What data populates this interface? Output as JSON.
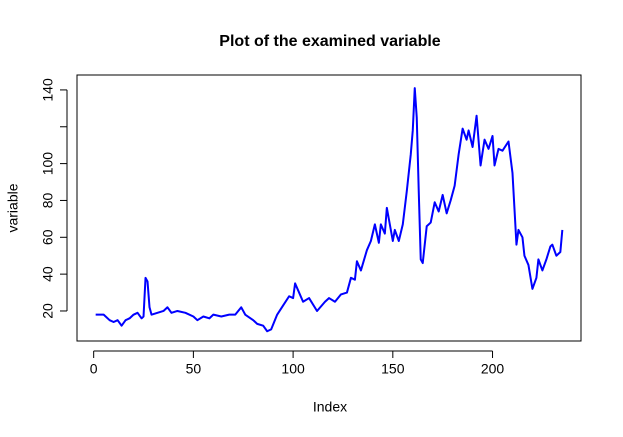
{
  "chart_data": {
    "type": "line",
    "title": "Plot of the examined variable",
    "x_label": "Index",
    "y_label": "variable",
    "x": [
      1,
      5,
      8,
      10,
      12,
      14,
      16,
      18,
      20,
      22,
      24,
      25,
      26,
      27,
      28,
      29,
      32,
      35,
      37,
      39,
      42,
      46,
      50,
      52,
      55,
      58,
      60,
      64,
      68,
      71,
      74,
      76,
      80,
      82,
      85,
      87,
      89,
      92,
      95,
      98,
      100,
      101,
      103,
      105,
      108,
      112,
      116,
      118,
      121,
      124,
      127,
      129,
      131,
      132,
      134,
      137,
      139,
      141,
      143,
      144,
      146,
      147,
      148,
      150,
      151,
      153,
      155,
      157,
      159,
      160,
      161,
      162,
      163,
      164,
      165,
      167,
      169,
      171,
      173,
      175,
      177,
      179,
      181,
      183,
      185,
      187,
      188,
      190,
      192,
      194,
      196,
      198,
      200,
      201,
      203,
      205,
      208,
      210,
      212,
      213,
      215,
      216,
      218,
      220,
      222,
      223,
      225,
      227,
      229,
      230,
      232,
      234,
      235
    ],
    "series": [
      {
        "name": "variable",
        "color": "#0000ff",
        "values": [
          18,
          18,
          15,
          14,
          15,
          12,
          15,
          16,
          18,
          19,
          16,
          17,
          38,
          36,
          22,
          18,
          19,
          20,
          22,
          19,
          20,
          19,
          17,
          15,
          17,
          16,
          18,
          17,
          18,
          18,
          22,
          18,
          15,
          13,
          12,
          9,
          10,
          18,
          23,
          28,
          27,
          35,
          30,
          25,
          27,
          20,
          25,
          27,
          25,
          29,
          30,
          38,
          37,
          47,
          42,
          53,
          58,
          67,
          57,
          67,
          62,
          76,
          70,
          58,
          64,
          58,
          67,
          85,
          105,
          118,
          141,
          125,
          85,
          48,
          46,
          66,
          68,
          79,
          74,
          83,
          73,
          80,
          88,
          105,
          119,
          113,
          118,
          109,
          126,
          99,
          113,
          108,
          115,
          99,
          108,
          107,
          112,
          95,
          56,
          64,
          60,
          50,
          45,
          32,
          38,
          48,
          42,
          48,
          55,
          56,
          50,
          52,
          64
        ]
      }
    ],
    "xlim": [
      -8.36,
      244.36
    ],
    "ylim": [
      3.7,
      148.1
    ],
    "xticks": [
      0,
      50,
      100,
      150,
      200
    ],
    "yticks": [
      20,
      40,
      60,
      80,
      100,
      {
        "value": 120,
        "label": null
      },
      140
    ]
  }
}
